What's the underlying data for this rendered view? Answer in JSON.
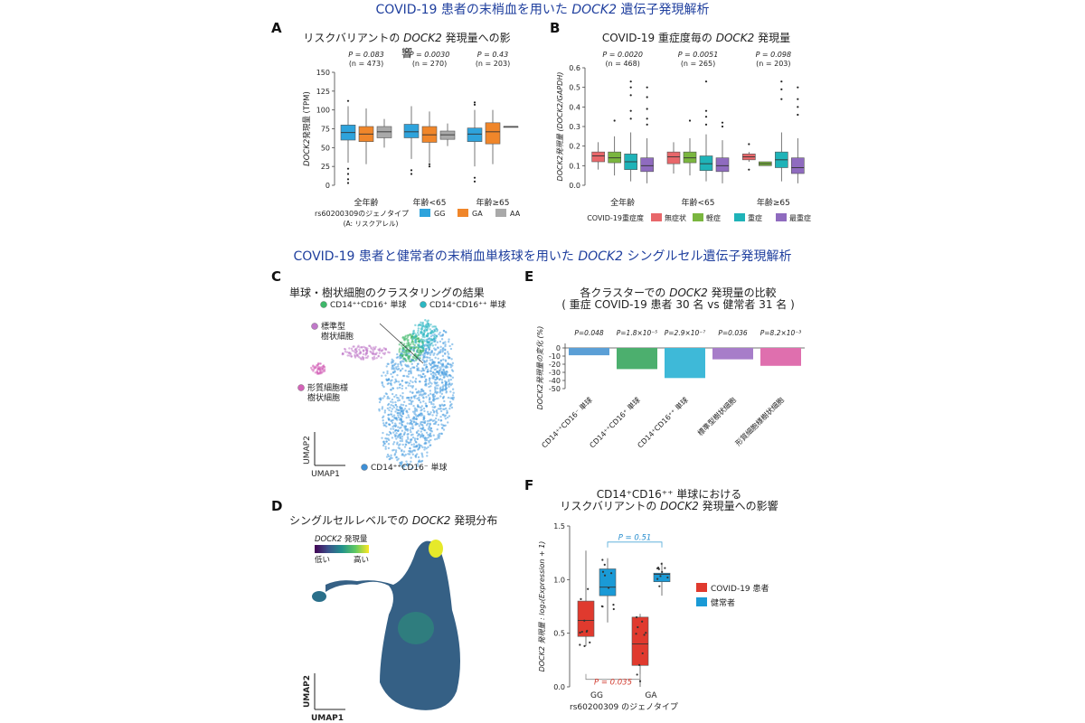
{
  "header_top": {
    "pre": "COVID-19 患者の末梢血を用いた ",
    "gene": "DOCK2",
    "post": " 遺伝子発現解析"
  },
  "header_mid": {
    "pre": "COVID-19 患者と健常者の末梢血単核球を用いた ",
    "gene": "DOCK2",
    "post": " シングルセル遺伝子発現解析"
  },
  "panels": {
    "A": {
      "letter": "A",
      "title_pre": "リスクバリアントの ",
      "title_gene": "DOCK2",
      "title_post": " 発現量への影響",
      "ylabel_gene": "DOCK2",
      "ylabel_rest": "発現量 (TPM)",
      "stats": [
        {
          "p": "P = 0.083",
          "n": "(n = 473)"
        },
        {
          "p": "P = 0.0030",
          "n": "(n = 270)"
        },
        {
          "p": "P = 0.43",
          "n": "(n = 203)"
        }
      ],
      "legend_title": "rs60200309のジェノタイプ",
      "legend_sub": "(A: リスクアレル)"
    },
    "B": {
      "letter": "B",
      "title_pre": "COVID-19 重症度毎の ",
      "title_gene": "DOCK2",
      "title_post": " 発現量",
      "ylabel": "DOCK2発現量 (DOCK2/GAPDH)",
      "stats": [
        {
          "p": "P = 0.0020",
          "n": "(n = 468)"
        },
        {
          "p": "P = 0.0051",
          "n": "(n = 265)"
        },
        {
          "p": "P = 0.098",
          "n": "(n = 203)"
        }
      ],
      "legend_title": "COVID-19重症度"
    },
    "C": {
      "letter": "C",
      "title": "単球・樹状細胞のクラスタリングの結果",
      "labels": [
        "CD14⁺⁺CD16⁺ 単球",
        "CD14⁺CD16⁺⁺ 単球",
        "標準型",
        "樹状細胞",
        "形質細胞様",
        "樹状細胞",
        "CD14⁺⁺CD16⁻ 単球"
      ],
      "axis_y": "UMAP2",
      "axis_x": "UMAP1"
    },
    "D": {
      "letter": "D",
      "title_pre": "シングルセルレベルでの ",
      "title_gene": "DOCK2",
      "title_post": " 発現分布",
      "cbar_title_gene": "DOCK2",
      "cbar_title_rest": " 発現量",
      "cbar_low": "低い",
      "cbar_high": "高い",
      "axis_y": "UMAP2",
      "axis_x": "UMAP1"
    },
    "E": {
      "letter": "E",
      "title_pre": "各クラスターでの ",
      "title_gene": "DOCK2",
      "title_post": " 発現量の比較",
      "title_line2": "( 重症 COVID-19 患者 30 名 vs 健常者 31 名 )",
      "ylabel": "DOCK2発現量の変化 (%)"
    },
    "F": {
      "letter": "F",
      "title_line1": "CD14⁺CD16⁺⁺ 単球における",
      "title_pre": "リスクバリアントの ",
      "title_gene": "DOCK2",
      "title_post": " 発現量への影響",
      "ylabel": "DOCK2 発現量 : log₂(Expression + 1)",
      "xlabel": "rs60200309 のジェノタイプ",
      "p_top": "P = 0.51",
      "p_bottom": "P = 0.035"
    }
  },
  "chart_data": [
    {
      "type": "box",
      "id": "A",
      "categories": [
        "全年齢",
        "年齢<65",
        "年齢≥65"
      ],
      "ylim": [
        0,
        150
      ],
      "yticks": [
        0,
        25,
        50,
        75,
        100,
        125,
        150
      ],
      "series": [
        {
          "name": "GG",
          "color": "#2ea3dc",
          "boxes": [
            {
              "q1": 60,
              "med": 70,
              "q3": 80,
              "lo": 30,
              "hi": 105,
              "out": [
                22,
                15,
                8,
                3,
                112
              ]
            },
            {
              "q1": 63,
              "med": 71,
              "q3": 81,
              "lo": 35,
              "hi": 105,
              "out": [
                20,
                15
              ]
            },
            {
              "q1": 58,
              "med": 68,
              "q3": 76,
              "lo": 25,
              "hi": 100,
              "out": [
                10,
                5,
                110,
                107
              ]
            }
          ]
        },
        {
          "name": "GA",
          "color": "#f0862a",
          "boxes": [
            {
              "q1": 58,
              "med": 68,
              "q3": 78,
              "lo": 28,
              "hi": 102,
              "out": []
            },
            {
              "q1": 57,
              "med": 67,
              "q3": 78,
              "lo": 30,
              "hi": 98,
              "out": [
                28,
                25
              ]
            },
            {
              "q1": 55,
              "med": 71,
              "q3": 83,
              "lo": 28,
              "hi": 100,
              "out": []
            }
          ]
        },
        {
          "name": "AA",
          "color": "#a9a9a9",
          "boxes": [
            {
              "q1": 63,
              "med": 71,
              "q3": 78,
              "lo": 50,
              "hi": 88,
              "out": []
            },
            {
              "q1": 61,
              "med": 67,
              "q3": 72,
              "lo": 52,
              "hi": 82,
              "out": []
            },
            {
              "q1": 78,
              "med": 78,
              "q3": 78,
              "lo": 78,
              "hi": 78,
              "out": []
            }
          ]
        }
      ]
    },
    {
      "type": "box",
      "id": "B",
      "categories": [
        "全年齢",
        "年齢<65",
        "年齢≥65"
      ],
      "ylim": [
        0,
        0.6
      ],
      "yticks": [
        0.0,
        0.1,
        0.2,
        0.3,
        0.4,
        0.5,
        0.6
      ],
      "series": [
        {
          "name": "無症状",
          "color": "#e8676a",
          "boxes": [
            {
              "q1": 0.12,
              "med": 0.15,
              "q3": 0.17,
              "lo": 0.08,
              "hi": 0.22,
              "out": []
            },
            {
              "q1": 0.11,
              "med": 0.145,
              "q3": 0.17,
              "lo": 0.06,
              "hi": 0.22,
              "out": []
            },
            {
              "q1": 0.13,
              "med": 0.145,
              "q3": 0.16,
              "lo": 0.12,
              "hi": 0.17,
              "out": [
                0.21,
                0.08
              ]
            }
          ]
        },
        {
          "name": "軽症",
          "color": "#7ab63f",
          "boxes": [
            {
              "q1": 0.115,
              "med": 0.14,
              "q3": 0.17,
              "lo": 0.05,
              "hi": 0.25,
              "out": [
                0.33
              ]
            },
            {
              "q1": 0.115,
              "med": 0.14,
              "q3": 0.17,
              "lo": 0.05,
              "hi": 0.24,
              "out": [
                0.33
              ]
            },
            {
              "q1": 0.1,
              "med": 0.11,
              "q3": 0.12,
              "lo": 0.1,
              "hi": 0.12,
              "out": []
            }
          ]
        },
        {
          "name": "重症",
          "color": "#1fb3b8",
          "boxes": [
            {
              "q1": 0.08,
              "med": 0.12,
              "q3": 0.16,
              "lo": 0.02,
              "hi": 0.27,
              "out": [
                0.53,
                0.5,
                0.46,
                0.38,
                0.34
              ]
            },
            {
              "q1": 0.075,
              "med": 0.11,
              "q3": 0.15,
              "lo": 0.02,
              "hi": 0.26,
              "out": [
                0.53,
                0.38,
                0.35,
                0.31
              ]
            },
            {
              "q1": 0.09,
              "med": 0.13,
              "q3": 0.17,
              "lo": 0.02,
              "hi": 0.27,
              "out": [
                0.53,
                0.49,
                0.44
              ]
            }
          ]
        },
        {
          "name": "最重症",
          "color": "#8f6bbf",
          "boxes": [
            {
              "q1": 0.07,
              "med": 0.1,
              "q3": 0.14,
              "lo": 0.01,
              "hi": 0.24,
              "out": [
                0.5,
                0.45,
                0.39,
                0.34,
                0.31
              ]
            },
            {
              "q1": 0.07,
              "med": 0.1,
              "q3": 0.14,
              "lo": 0.01,
              "hi": 0.23,
              "out": [
                0.32,
                0.3
              ]
            },
            {
              "q1": 0.06,
              "med": 0.09,
              "q3": 0.14,
              "lo": 0.01,
              "hi": 0.24,
              "out": [
                0.5,
                0.44,
                0.4,
                0.36
              ]
            }
          ]
        }
      ]
    },
    {
      "type": "bar",
      "id": "E",
      "categories": [
        "CD14⁺⁺CD16⁻ 単球",
        "CD14⁺⁺CD16⁺ 単球",
        "CD14⁺CD16⁺⁺ 単球",
        "標準型樹状細胞",
        "形質細胞様樹状細胞"
      ],
      "values": [
        -9,
        -26,
        -37,
        -14,
        -22
      ],
      "colors": [
        "#5b9fd6",
        "#4caf6e",
        "#3eb9d8",
        "#a77dc9",
        "#df6fae"
      ],
      "pvals": [
        "P=0.048",
        "P=1.8×10⁻⁵",
        "P=2.9×10⁻⁷",
        "P=0.036",
        "P=8.2×10⁻³"
      ],
      "ylim": [
        -50,
        0
      ],
      "yticks": [
        0,
        -10,
        -20,
        -30,
        -40,
        -50
      ]
    },
    {
      "type": "box",
      "id": "F",
      "categories": [
        "GG",
        "GA"
      ],
      "ylim": [
        0,
        1.5
      ],
      "yticks": [
        0.0,
        0.5,
        1.0,
        1.5
      ],
      "series": [
        {
          "name": "COVID-19 患者",
          "color": "#e03a2e",
          "boxes": [
            {
              "q1": 0.47,
              "med": 0.62,
              "q3": 0.8,
              "lo": 0.38,
              "hi": 1.27,
              "out": []
            },
            {
              "q1": 0.2,
              "med": 0.4,
              "q3": 0.65,
              "lo": 0.0,
              "hi": 0.68,
              "out": []
            }
          ]
        },
        {
          "name": "健常者",
          "color": "#1a9ad6",
          "boxes": [
            {
              "q1": 0.85,
              "med": 0.93,
              "q3": 1.1,
              "lo": 0.6,
              "hi": 1.2,
              "out": []
            },
            {
              "q1": 0.98,
              "med": 1.05,
              "q3": 1.06,
              "lo": 0.85,
              "hi": 1.16,
              "out": []
            }
          ]
        }
      ]
    }
  ]
}
